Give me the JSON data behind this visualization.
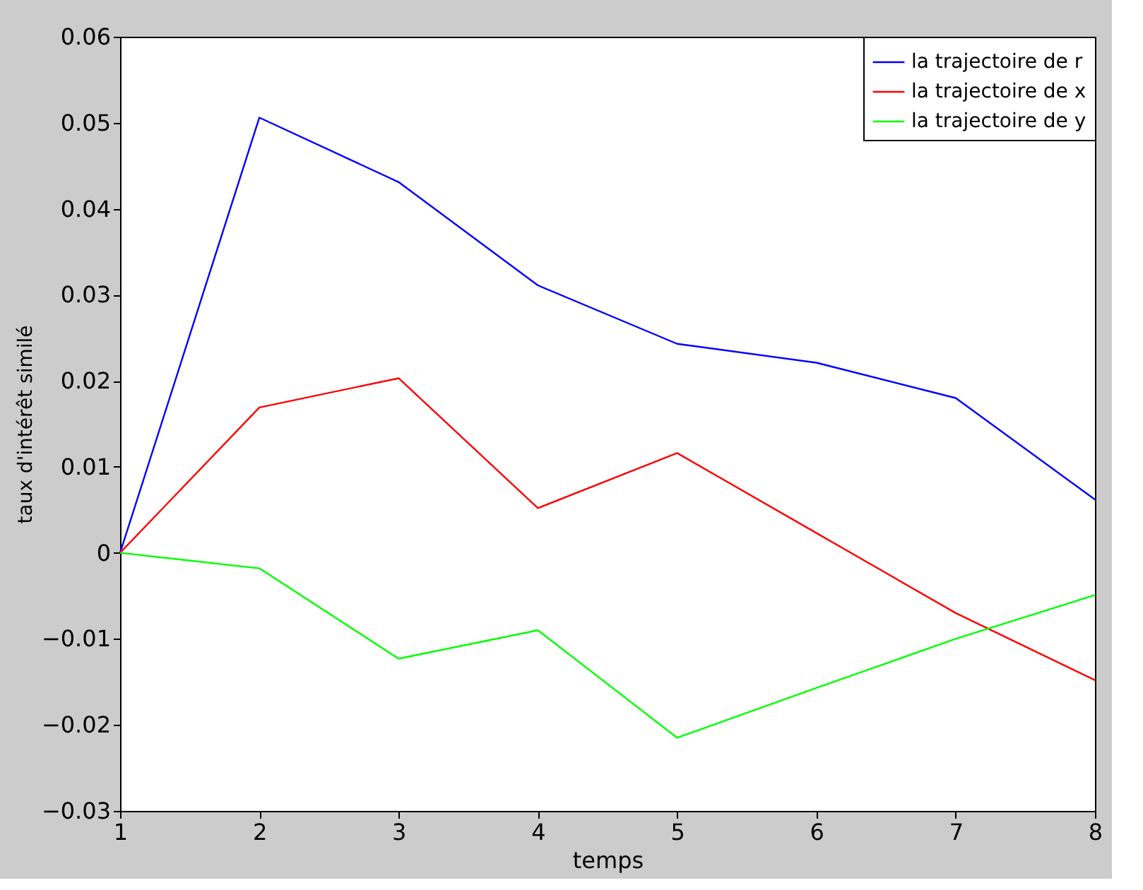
{
  "chart_data": {
    "type": "line",
    "xlabel": "temps",
    "ylabel": "taux d'intérêt similé",
    "x": [
      1,
      2,
      3,
      4,
      5,
      6,
      7,
      8
    ],
    "series": [
      {
        "name": "la trajectoire de r",
        "color": "#0000ff",
        "values": [
          0,
          0.0506,
          0.0431,
          0.0311,
          0.0243,
          0.0221,
          0.018,
          0.0062
        ]
      },
      {
        "name": "la trajectoire de x",
        "color": "#ff0000",
        "values": [
          0,
          0.0169,
          0.0203,
          0.0052,
          0.0116,
          0.0023,
          -0.007,
          -0.0148
        ]
      },
      {
        "name": "la trajectoire de y",
        "color": "#00ff00",
        "values": [
          0,
          -0.0018,
          -0.0123,
          -0.009,
          -0.0215,
          -0.0157,
          -0.01,
          -0.0049
        ]
      }
    ],
    "xlim": [
      1,
      8
    ],
    "xticks": [
      1,
      2,
      3,
      4,
      5,
      6,
      7,
      8
    ],
    "ylim": [
      -0.03,
      0.06
    ],
    "yticks": [
      -0.03,
      -0.02,
      -0.01,
      0,
      0.01,
      0.02,
      0.03,
      0.04,
      0.05,
      0.06
    ],
    "legend": "top right",
    "grid": false,
    "marker": "none",
    "line_style": "solid"
  }
}
